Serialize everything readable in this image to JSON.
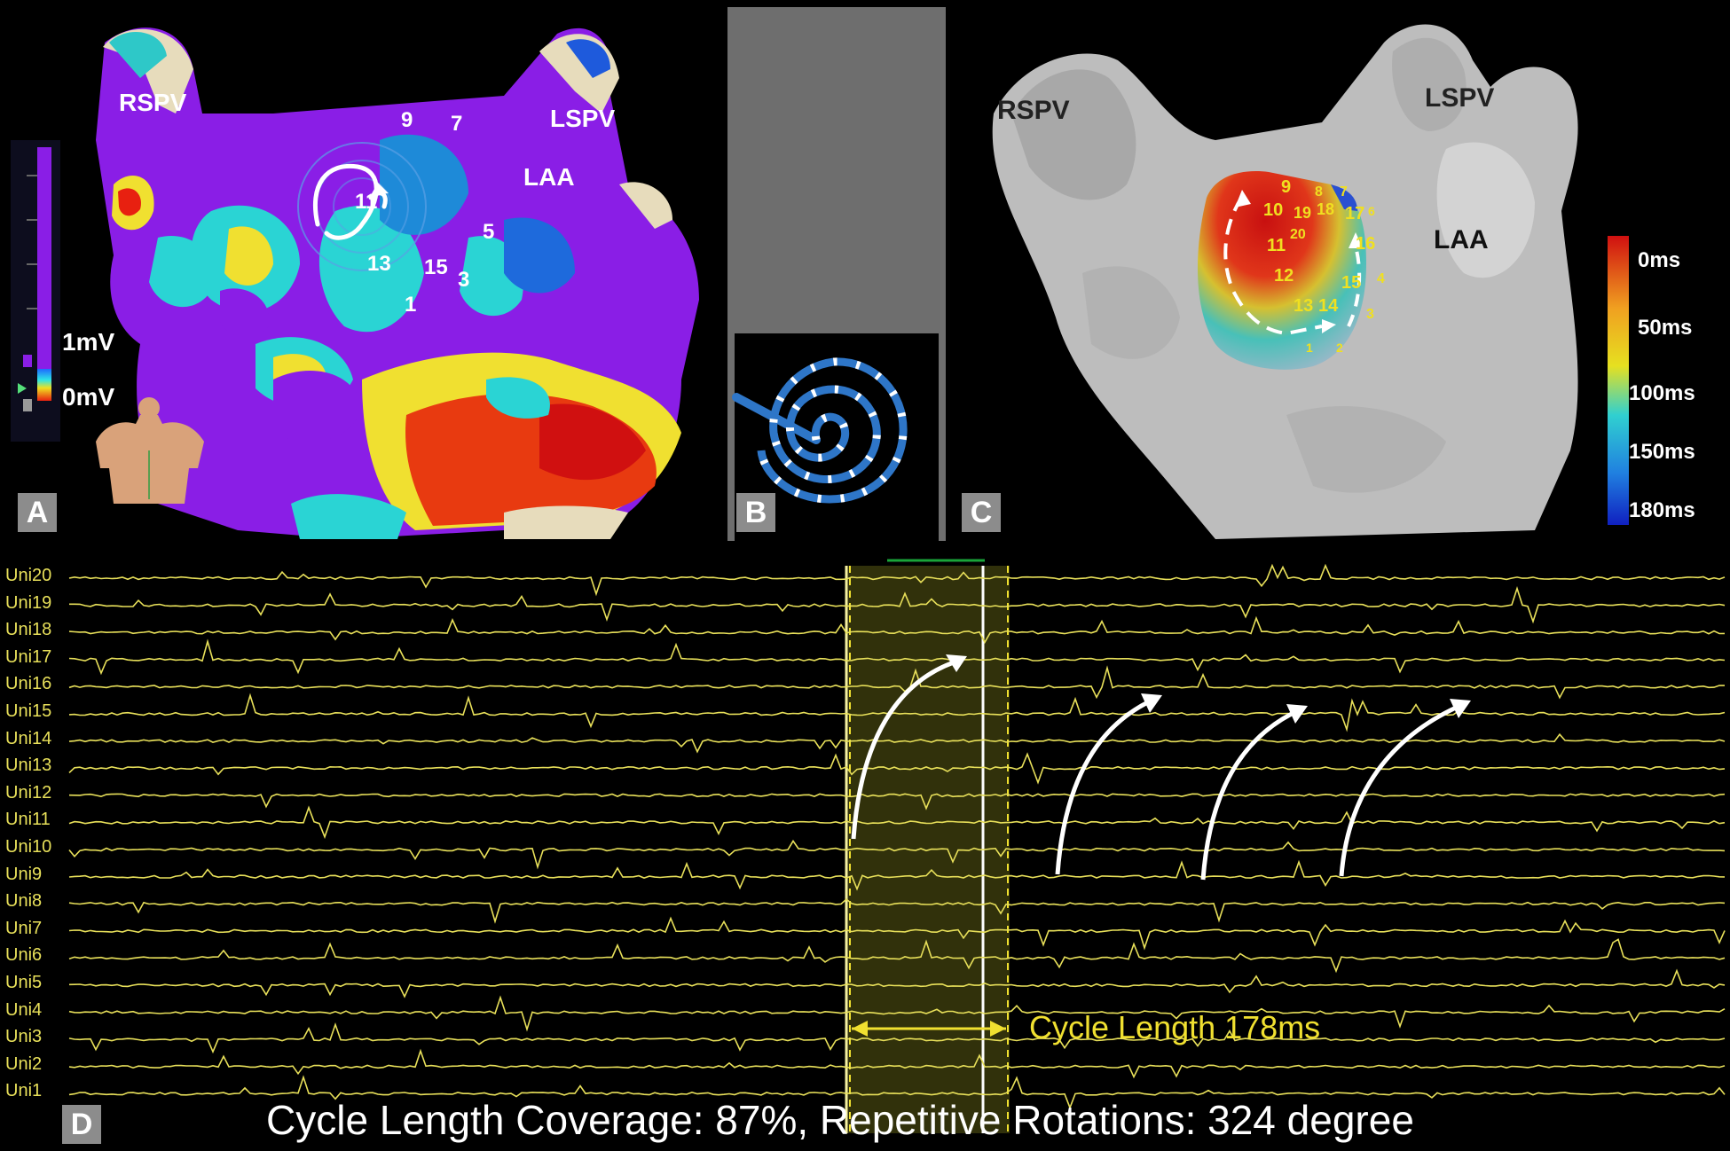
{
  "panel_a": {
    "letter": "A",
    "labels": {
      "rspv": "RSPV",
      "lspv": "LSPV",
      "laa": "LAA"
    },
    "electrodes": [
      "9",
      "7",
      "11",
      "5",
      "13",
      "15",
      "3",
      "1"
    ],
    "scale": {
      "top": "1mV",
      "bottom": "0mV"
    },
    "colors": {
      "low_voltage": "#8a1ee6",
      "healthy": "#8a1ee6"
    }
  },
  "panel_b": {
    "letter": "B"
  },
  "panel_c": {
    "letter": "C",
    "labels": {
      "rspv": "RSPV",
      "lspv": "LSPV",
      "laa": "LAA"
    },
    "electrodes": [
      "9",
      "8",
      "7",
      "10",
      "19",
      "18",
      "17",
      "6",
      "11",
      "20",
      "16",
      "12",
      "15",
      "4",
      "13",
      "14",
      "3",
      "1",
      "2"
    ],
    "legend": [
      "0ms",
      "50ms",
      "100ms",
      "150ms",
      "180ms"
    ]
  },
  "panel_d": {
    "letter": "D",
    "channels": [
      "Uni20",
      "Uni19",
      "Uni18",
      "Uni17",
      "Uni16",
      "Uni15",
      "Uni14",
      "Uni13",
      "Uni12",
      "Uni11",
      "Uni10",
      "Uni9",
      "Uni8",
      "Uni7",
      "Uni6",
      "Uni5",
      "Uni4",
      "Uni3",
      "Uni2",
      "Uni1"
    ],
    "cycle_length": "Cycle Length 178ms",
    "summary": "Cycle Length Coverage: 87%, Repetitive Rotations: 324 degree",
    "trace_color": "#e8e05a"
  }
}
